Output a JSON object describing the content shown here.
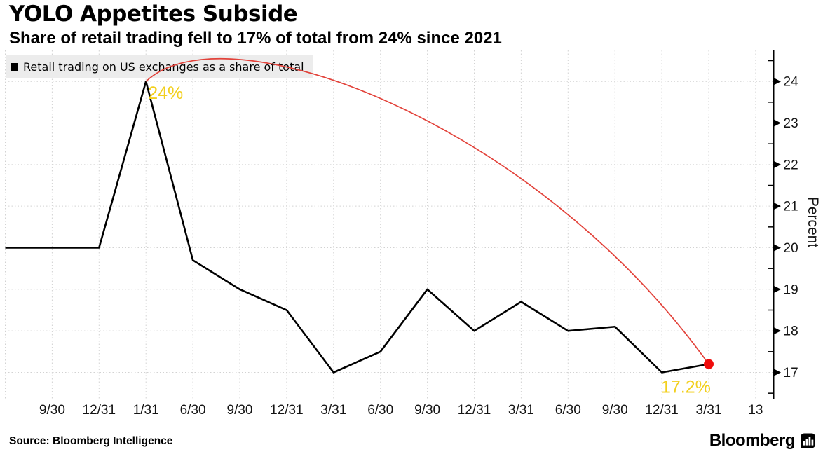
{
  "header": {
    "title": "YOLO Appetites Subside",
    "subtitle": "Share of retail trading fell to 17% of total from 24% since 2021"
  },
  "legend": {
    "swatch_color": "#000000",
    "label": "Retail trading on US exchanges as a share of total"
  },
  "chart_data": {
    "type": "line",
    "title": "YOLO Appetites Subside",
    "subtitle": "Share of retail trading fell to 17% of total from 24% since 2021",
    "ylabel": "Percent",
    "ylim": [
      16.4,
      24.75
    ],
    "grid": true,
    "legend_position": "top-left",
    "x_tick_labels": [
      "9/30",
      "12/31",
      "1/31",
      "6/30",
      "9/30",
      "12/31",
      "3/31",
      "6/30",
      "9/30",
      "12/31",
      "3/31",
      "6/30",
      "9/30",
      "12/31",
      "3/31",
      "13"
    ],
    "x_label_start_slot": 1,
    "x_first_point_slot": 0,
    "y_ticks": [
      17,
      18,
      19,
      20,
      21,
      22,
      23,
      24
    ],
    "y_minor_ticks": [
      16.5,
      17.5,
      18.5,
      19.5,
      20.5,
      21.5,
      22.5,
      23.5,
      24.5
    ],
    "series": [
      {
        "name": "Retail trading on US exchanges as a share of total",
        "color": "#000000",
        "values": [
          20,
          20,
          20,
          24,
          19.7,
          19,
          18.5,
          17,
          17.5,
          19,
          18,
          18.7,
          18,
          18.1,
          17,
          17.2
        ]
      }
    ],
    "annotations": [
      {
        "text": "24%",
        "point_index": 3,
        "color": "#f2cf1d"
      },
      {
        "text": "17.2%",
        "point_index": 15,
        "color": "#f2cf1d"
      }
    ],
    "trend_arc": {
      "color": "#e2423a",
      "from_point_index": 3,
      "to_point_index": 15
    },
    "end_dot": {
      "color": "#f00c0c",
      "point_index": 15
    }
  },
  "footer": {
    "source": "Source: Bloomberg Intelligence",
    "brand": "Bloomberg"
  }
}
